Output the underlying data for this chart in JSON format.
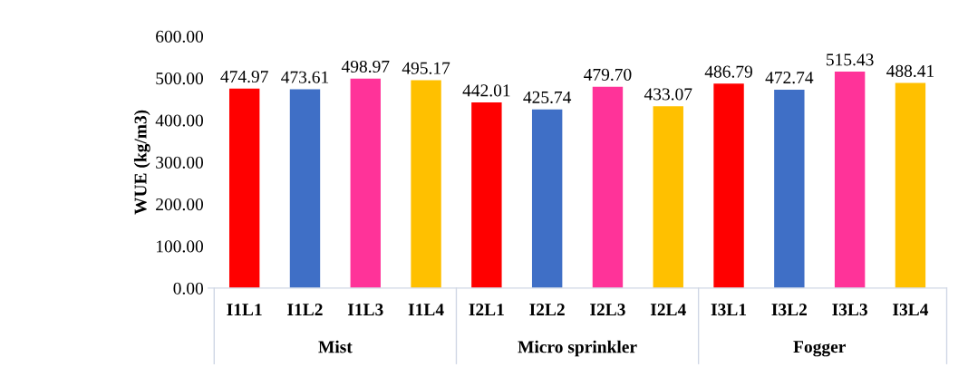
{
  "chart_data": {
    "type": "bar",
    "ylabel": "WUE (kg/m3)",
    "categories": [
      "I1L1",
      "I1L2",
      "I1L3",
      "I1L4",
      "I2L1",
      "I2L2",
      "I2L3",
      "I2L4",
      "I3L1",
      "I3L2",
      "I3L3",
      "I3L4"
    ],
    "values": [
      474.97,
      473.61,
      498.97,
      495.17,
      442.01,
      425.74,
      479.7,
      433.07,
      486.79,
      472.74,
      515.43,
      488.41
    ],
    "colors": [
      "#ff0000",
      "#3f6fc6",
      "#ff3399",
      "#ffc000",
      "#ff0000",
      "#3f6fc6",
      "#ff3399",
      "#ffc000",
      "#ff0000",
      "#3f6fc6",
      "#ff3399",
      "#ffc000"
    ],
    "value_labels": [
      "474.97",
      "473.61",
      "498.97",
      "495.17",
      "442.01",
      "425.74",
      "479.70",
      "433.07",
      "486.79",
      "472.74",
      "515.43",
      "488.41"
    ],
    "ylim": [
      0,
      600
    ],
    "yticks": [
      {
        "value": 0,
        "label": "0.00"
      },
      {
        "value": 100,
        "label": "100.00"
      },
      {
        "value": 200,
        "label": "200.00"
      },
      {
        "value": 300,
        "label": "300.00"
      },
      {
        "value": 400,
        "label": "400.00"
      },
      {
        "value": 500,
        "label": "500.00"
      },
      {
        "value": 600,
        "label": "600.00"
      }
    ],
    "annotations": [
      "Mist",
      "Micro sprinkler",
      "Fogger"
    ],
    "grid": false,
    "legend": false
  }
}
